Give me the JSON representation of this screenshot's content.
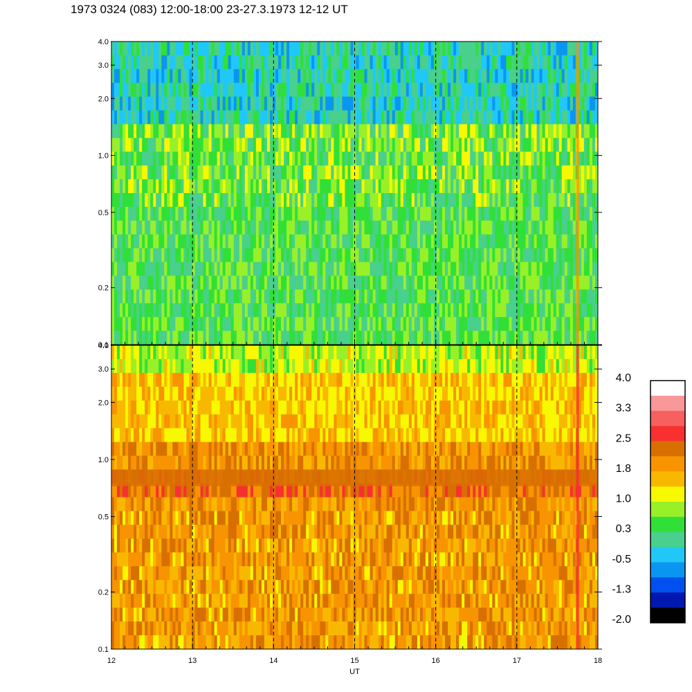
{
  "title": "1973 0324 (083) 12:00-18:00 23-27.3.1973  12-12 UT",
  "colors": {
    "black": "#000000",
    "navy": "#0018b0",
    "blue": "#0050f0",
    "blue2": "#0a96f0",
    "cyan": "#20c8f8",
    "teal": "#48d08c",
    "green": "#30e038",
    "lime": "#98f028",
    "yellow": "#f8f800",
    "gold": "#f8b800",
    "orange": "#f89400",
    "darkorange": "#d87000",
    "red": "#f83030",
    "salmon": "#f86060",
    "pink": "#f89898",
    "white": "#ffffff"
  },
  "chart_data": [
    {
      "type": "heatmap",
      "panel": "top",
      "x_range": [
        12,
        18
      ],
      "y_range": [
        0.1,
        4.0
      ],
      "y_scale": "log",
      "x_ticks": [
        "12",
        "13",
        "14",
        "15",
        "16",
        "17",
        "18"
      ],
      "y_ticks": [
        "0.1",
        "0.2",
        "0.5",
        "1.0",
        "2.0",
        "3.0",
        "4.0"
      ],
      "vertical_dashed_lines_at": [
        13,
        14,
        15,
        16,
        17
      ],
      "dominant_levels": {
        "high": "cyan/green",
        "mid": "green/lime",
        "low": "green/teal"
      }
    },
    {
      "type": "heatmap",
      "panel": "bottom",
      "x_range": [
        12,
        18
      ],
      "y_range": [
        0.1,
        4.0
      ],
      "y_scale": "log",
      "x_ticks": [
        "12",
        "13",
        "14",
        "15",
        "16",
        "17",
        "18"
      ],
      "y_ticks": [
        "0.1",
        "0.2",
        "0.5",
        "1.0",
        "2.0",
        "3.0",
        "4.0"
      ],
      "xlabel": "UT",
      "vertical_dashed_lines_at": [
        13,
        14,
        15,
        16,
        17
      ],
      "band": {
        "y_center": 0.8,
        "color": "darkorange"
      }
    }
  ],
  "colorbar": {
    "labels": [
      "4.0",
      "3.3",
      "2.5",
      "1.8",
      "1.0",
      "0.3",
      "-0.5",
      "-1.3",
      "-2.0"
    ],
    "segments_top_to_bottom": [
      "white",
      "pink",
      "salmon",
      "red",
      "darkorange",
      "orange",
      "gold",
      "yellow",
      "lime",
      "green",
      "teal",
      "cyan",
      "blue2",
      "blue",
      "navy",
      "black"
    ]
  }
}
